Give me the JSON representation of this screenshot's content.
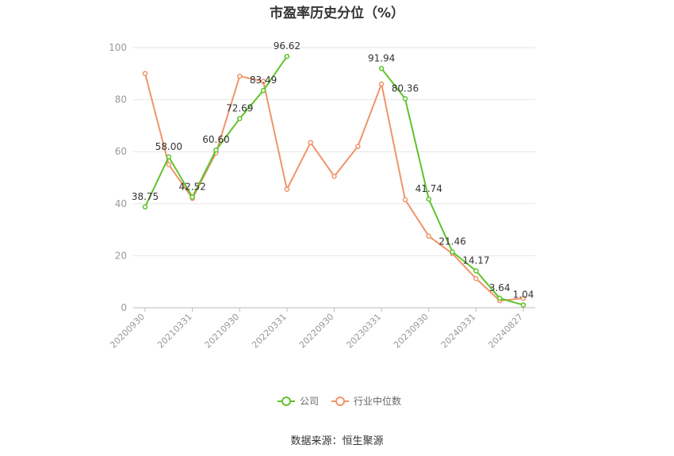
{
  "title": "市盈率历史分位（%）",
  "source": "数据来源：恒生聚源",
  "colors": {
    "company": "#5ec32a",
    "industry": "#f0946a",
    "axis": "#bbbbbb",
    "grid": "#e6e6e6"
  },
  "chart_data": {
    "type": "line",
    "title": "市盈率历史分位（%）",
    "x": [
      "20200930",
      "20201231",
      "20210331",
      "20210630",
      "20210930",
      "20211231",
      "20220331",
      "20220630",
      "20220930",
      "20221231",
      "20230331",
      "20230630",
      "20230930",
      "20231231",
      "20240331",
      "20240630",
      "20240827"
    ],
    "x_tick_labels": [
      "20200930",
      "20210331",
      "20210930",
      "20220331",
      "20220930",
      "20230331",
      "20230930",
      "20240331",
      "20240827"
    ],
    "ylim": [
      0,
      100
    ],
    "y_ticks": [
      0,
      20,
      40,
      60,
      80,
      100
    ],
    "grid": true,
    "legend_position": "bottom",
    "series": [
      {
        "name": "公司",
        "values": [
          38.75,
          58.0,
          42.52,
          60.6,
          72.69,
          83.49,
          96.62,
          null,
          null,
          null,
          91.94,
          80.36,
          41.74,
          21.46,
          14.17,
          3.64,
          1.04
        ],
        "labels": [
          "38.75",
          "58.00",
          "42.52",
          "60.60",
          "72.69",
          "83.49",
          "96.62",
          null,
          null,
          null,
          "91.94",
          "80.36",
          "41.74",
          "21.46",
          "14.17",
          "3.64",
          "1.04"
        ]
      },
      {
        "name": "行业中位数",
        "values": [
          90.0,
          55.0,
          42.0,
          59.5,
          89.0,
          87.0,
          45.5,
          63.5,
          50.5,
          62.0,
          86.0,
          41.5,
          27.5,
          20.8,
          11.2,
          2.7,
          3.6
        ]
      }
    ]
  }
}
